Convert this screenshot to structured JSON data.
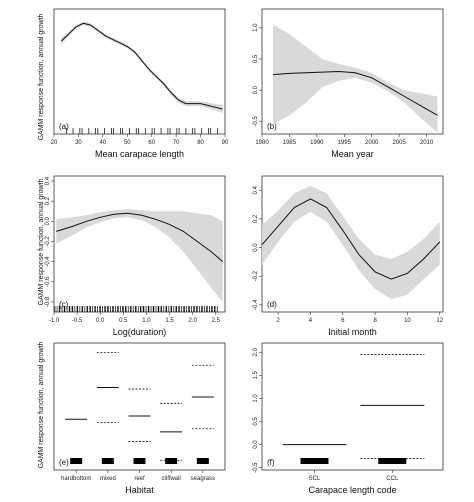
{
  "figure": {
    "ylabel": "GAMM response function, annual growth"
  },
  "chart_data": [
    {
      "id": "a",
      "type": "line",
      "panel_label": "(a)",
      "xlabel": "Mean carapace length",
      "xlim": [
        20,
        90
      ],
      "ylim": [
        -1.5,
        2.0
      ],
      "xticks": [
        "20",
        "30",
        "40",
        "50",
        "60",
        "70",
        "80",
        "90"
      ],
      "yticks": [],
      "rug": "dense 25-85",
      "x": [
        23,
        26,
        29,
        32,
        35,
        38,
        41,
        44,
        47,
        50,
        53,
        56,
        59,
        62,
        65,
        68,
        71,
        74,
        77,
        80,
        83,
        86,
        89
      ],
      "y": [
        1.1,
        1.3,
        1.5,
        1.6,
        1.55,
        1.4,
        1.25,
        1.15,
        1.05,
        0.95,
        0.8,
        0.55,
        0.3,
        0.1,
        -0.1,
        -0.35,
        -0.55,
        -0.65,
        -0.65,
        -0.65,
        -0.7,
        -0.75,
        -0.8
      ],
      "lower": [
        1.0,
        1.25,
        1.45,
        1.55,
        1.5,
        1.35,
        1.2,
        1.1,
        1.0,
        0.9,
        0.75,
        0.5,
        0.25,
        0.05,
        -0.15,
        -0.42,
        -0.62,
        -0.72,
        -0.72,
        -0.72,
        -0.78,
        -0.84,
        -0.92
      ],
      "upper": [
        1.2,
        1.35,
        1.55,
        1.65,
        1.6,
        1.45,
        1.3,
        1.2,
        1.1,
        1.0,
        0.85,
        0.6,
        0.35,
        0.15,
        -0.05,
        -0.28,
        -0.48,
        -0.58,
        -0.58,
        -0.58,
        -0.62,
        -0.66,
        -0.68
      ]
    },
    {
      "id": "b",
      "type": "line",
      "panel_label": "(b)",
      "xlabel": "Mean year",
      "xlim": [
        1980,
        2013
      ],
      "ylim": [
        -0.7,
        1.3
      ],
      "xticks": [
        "1980",
        "1985",
        "1990",
        "1995",
        "2000",
        "2005",
        "2010"
      ],
      "yticks": [
        "1.0",
        "0.5",
        "0.0",
        "-0.5"
      ],
      "x": [
        1982,
        1985,
        1988,
        1991,
        1994,
        1997,
        2000,
        2003,
        2006,
        2009,
        2012
      ],
      "y": [
        0.25,
        0.27,
        0.28,
        0.29,
        0.3,
        0.28,
        0.2,
        0.05,
        -0.1,
        -0.25,
        -0.4
      ],
      "lower": [
        -0.55,
        -0.4,
        -0.2,
        0.05,
        0.15,
        0.2,
        0.12,
        -0.02,
        -0.2,
        -0.45,
        -0.68
      ],
      "upper": [
        1.05,
        0.9,
        0.7,
        0.5,
        0.42,
        0.36,
        0.28,
        0.12,
        0.0,
        -0.05,
        -0.1
      ]
    },
    {
      "id": "c",
      "type": "line",
      "panel_label": "(c)",
      "xlabel": "Log(duration)",
      "xlim": [
        -1.0,
        2.7
      ],
      "ylim": [
        -0.9,
        0.45
      ],
      "xticks": [
        "-1.0",
        "-0.5",
        "0.0",
        "0.5",
        "1.0",
        "1.5",
        "2.0",
        "2.5"
      ],
      "yticks": [
        "0.4",
        "0.2",
        "0.0",
        "-0.2",
        "-0.4",
        "-0.6",
        "-0.8"
      ],
      "rug": "dense -1.0 to 2.5",
      "x": [
        -0.95,
        -0.6,
        -0.3,
        0.0,
        0.3,
        0.6,
        0.9,
        1.2,
        1.5,
        1.8,
        2.1,
        2.4,
        2.65
      ],
      "y": [
        -0.1,
        -0.05,
        0.0,
        0.04,
        0.07,
        0.08,
        0.06,
        0.02,
        -0.03,
        -0.1,
        -0.2,
        -0.3,
        -0.4
      ],
      "lower": [
        -0.22,
        -0.14,
        -0.06,
        -0.01,
        0.03,
        0.04,
        0.01,
        -0.06,
        -0.16,
        -0.3,
        -0.48,
        -0.66,
        -0.8
      ],
      "upper": [
        0.02,
        0.04,
        0.06,
        0.09,
        0.11,
        0.12,
        0.11,
        0.1,
        0.1,
        0.1,
        0.08,
        0.06,
        0.0
      ]
    },
    {
      "id": "d",
      "type": "line",
      "panel_label": "(d)",
      "xlabel": "Initial month",
      "xlim": [
        1,
        12.2
      ],
      "ylim": [
        -0.45,
        0.5
      ],
      "xticks": [
        "2",
        "4",
        "6",
        "8",
        "10",
        "12"
      ],
      "yticks": [
        "0.4",
        "0.2",
        "0.0",
        "-0.2",
        "-0.4"
      ],
      "x": [
        1,
        2,
        3,
        4,
        5,
        6,
        7,
        8,
        9,
        10,
        11,
        12
      ],
      "y": [
        0.02,
        0.15,
        0.28,
        0.34,
        0.28,
        0.12,
        -0.05,
        -0.17,
        -0.22,
        -0.18,
        -0.08,
        0.04
      ],
      "lower": [
        -0.12,
        0.04,
        0.18,
        0.25,
        0.18,
        0.02,
        -0.16,
        -0.29,
        -0.36,
        -0.33,
        -0.22,
        -0.12
      ],
      "upper": [
        0.16,
        0.26,
        0.38,
        0.43,
        0.38,
        0.22,
        0.06,
        -0.05,
        -0.08,
        -0.03,
        0.06,
        0.18
      ]
    },
    {
      "id": "e",
      "type": "categorical",
      "panel_label": "(e)",
      "xlabel": "Habitat",
      "categories": [
        "hardbottom",
        "mixed",
        "reef",
        "cliffwall",
        "seagrass"
      ],
      "ylim": [
        -1.6,
        2.4
      ],
      "yticks": [],
      "estimate": [
        0.0,
        1.0,
        0.1,
        -0.4,
        0.7
      ],
      "lower": [
        null,
        -0.1,
        -0.7,
        -1.3,
        -0.3
      ],
      "upper": [
        null,
        2.1,
        0.95,
        0.5,
        1.7
      ]
    },
    {
      "id": "f",
      "type": "categorical",
      "panel_label": "(f)",
      "xlabel": "Carapace length code",
      "categories": [
        "SCL",
        "CCL"
      ],
      "ylim": [
        -0.55,
        2.2
      ],
      "yticks": [
        "2.0",
        "1.5",
        "1.0",
        "0.5",
        "0.0",
        "-0.5"
      ],
      "estimate": [
        0.0,
        0.85
      ],
      "lower": [
        null,
        -0.3
      ],
      "upper": [
        null,
        1.95
      ]
    }
  ]
}
